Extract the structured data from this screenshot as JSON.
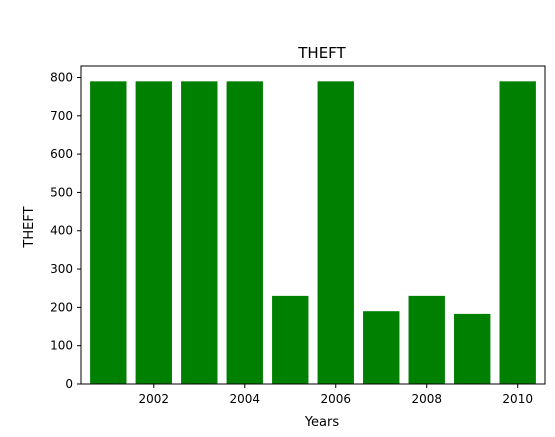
{
  "chart_data": {
    "type": "bar",
    "title": "THEFT",
    "xlabel": "Years",
    "ylabel": "THEFT",
    "x": [
      2001,
      2002,
      2003,
      2004,
      2005,
      2006,
      2007,
      2008,
      2009,
      2010
    ],
    "values": [
      790,
      790,
      790,
      790,
      230,
      790,
      190,
      230,
      183,
      790
    ],
    "xticks": [
      2002,
      2004,
      2006,
      2008,
      2010
    ],
    "yticks": [
      0,
      100,
      200,
      300,
      400,
      500,
      600,
      700,
      800
    ],
    "xlim": [
      2000.4,
      2010.6
    ],
    "ylim": [
      0,
      830
    ],
    "bar_color": "#008000",
    "grid": false,
    "legend": "none"
  }
}
